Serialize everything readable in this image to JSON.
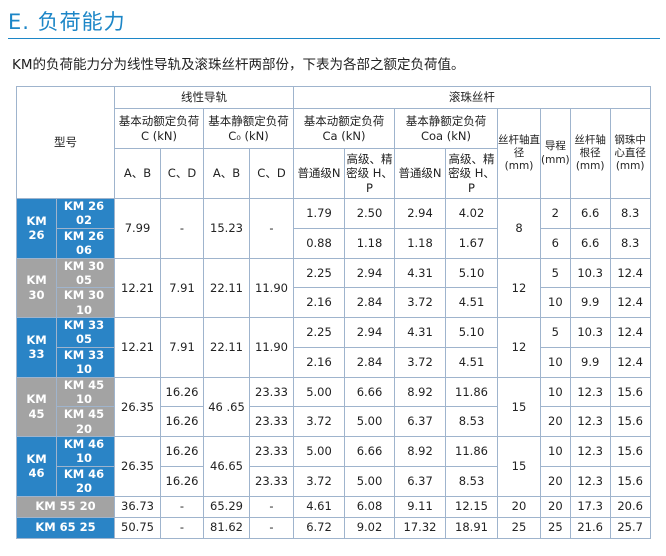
{
  "title": "E. 负荷能力",
  "intro": "KM的负荷能力分为线性导轨及滚珠丝杆两部份，下表为各部之额定负荷值。",
  "headers": {
    "model": "型号",
    "linear_group": "线性导轨",
    "screw_group": "滚珠丝杆",
    "c_dyn_line1": "基本动额定负荷",
    "c_dyn_line2": "C (kN)",
    "c_sta_line1": "基本静额定负荷",
    "c_sta_line2": "C₀ (kN)",
    "ca_line1": "基本动额定负荷",
    "ca_line2": "Ca (kN)",
    "coa_line1": "基本静额定负荷",
    "coa_line2": "Coa (kN)",
    "diameter": "丝杆轴直径 (mm)",
    "lead": "导程 (mm)",
    "root": "丝杆轴根径 (mm)",
    "steel_ball": "钢珠中心直径 (mm)",
    "ab1": "A、B",
    "cd1": "C、D",
    "ab2": "A、B",
    "cd2": "C、D",
    "normal1": "普通级N",
    "high1": "高级、精密级 H、P",
    "normal2": "普通级N",
    "high2": "高级、精密级 H、P"
  },
  "groups": [
    {
      "label": "KM 26",
      "color": "#2a84c6",
      "c_ab": "7.99",
      "c_cd": "-",
      "c0_ab": "15.23",
      "c0_cd": "-",
      "diameter": "8",
      "rows": [
        {
          "model": "KM 26 02",
          "ca_n": "1.79",
          "ca_hp": "2.50",
          "coa_n": "2.94",
          "coa_hp": "4.02",
          "lead": "2",
          "root": "6.6",
          "ball": "8.3"
        },
        {
          "model": "KM 26 06",
          "ca_n": "0.88",
          "ca_hp": "1.18",
          "coa_n": "1.18",
          "coa_hp": "1.67",
          "lead": "6",
          "root": "6.6",
          "ball": "8.3"
        }
      ]
    },
    {
      "label": "KM 30",
      "color": "#a3a3a3",
      "c_ab": "12.21",
      "c_cd": "7.91",
      "c0_ab": "22.11",
      "c0_cd": "11.90",
      "diameter": "12",
      "rows": [
        {
          "model": "KM 30 05",
          "ca_n": "2.25",
          "ca_hp": "2.94",
          "coa_n": "4.31",
          "coa_hp": "5.10",
          "lead": "5",
          "root": "10.3",
          "ball": "12.4"
        },
        {
          "model": "KM 30 10",
          "ca_n": "2.16",
          "ca_hp": "2.84",
          "coa_n": "3.72",
          "coa_hp": "4.51",
          "lead": "10",
          "root": "9.9",
          "ball": "12.4"
        }
      ]
    },
    {
      "label": "KM 33",
      "color": "#2a84c6",
      "c_ab": "12.21",
      "c_cd": "7.91",
      "c0_ab": "22.11",
      "c0_cd": "11.90",
      "diameter": "12",
      "rows": [
        {
          "model": "KM 33 05",
          "ca_n": "2.25",
          "ca_hp": "2.94",
          "coa_n": "4.31",
          "coa_hp": "5.10",
          "lead": "5",
          "root": "10.3",
          "ball": "12.4"
        },
        {
          "model": "KM 33 10",
          "ca_n": "2.16",
          "ca_hp": "2.84",
          "coa_n": "3.72",
          "coa_hp": "4.51",
          "lead": "10",
          "root": "9.9",
          "ball": "12.4"
        }
      ]
    },
    {
      "label": "KM 45",
      "color": "#a3a3a3",
      "c_ab": "26.35",
      "c0_ab": "46 .65",
      "diameter": "15",
      "rows": [
        {
          "model": "KM 45 10",
          "c_cd": "16.26",
          "c0_cd": "23.33",
          "ca_n": "5.00",
          "ca_hp": "6.66",
          "coa_n": "8.92",
          "coa_hp": "11.86",
          "lead": "10",
          "root": "12.3",
          "ball": "15.6"
        },
        {
          "model": "KM 45 20",
          "c_cd": "16.26",
          "c0_cd": "23.33",
          "ca_n": "3.72",
          "ca_hp": "5.00",
          "coa_n": "6.37",
          "coa_hp": "8.53",
          "lead": "20",
          "root": "12.3",
          "ball": "15.6"
        }
      ]
    },
    {
      "label": "KM 46",
      "color": "#2a84c6",
      "c_ab": "26.35",
      "c0_ab": "46.65",
      "diameter": "15",
      "rows": [
        {
          "model": "KM 46 10",
          "c_cd": "16.26",
          "c0_cd": "23.33",
          "ca_n": "5.00",
          "ca_hp": "6.66",
          "coa_n": "8.92",
          "coa_hp": "11.86",
          "lead": "10",
          "root": "12.3",
          "ball": "15.6"
        },
        {
          "model": "KM 46 20",
          "c_cd": "16.26",
          "c0_cd": "23.33",
          "ca_n": "3.72",
          "ca_hp": "5.00",
          "coa_n": "6.37",
          "coa_hp": "8.53",
          "lead": "20",
          "root": "12.3",
          "ball": "15.6"
        }
      ]
    }
  ],
  "single_rows": [
    {
      "model": "KM 55 20",
      "color": "#a3a3a3",
      "c_ab": "36.73",
      "c_cd": "-",
      "c0_ab": "65.29",
      "c0_cd": "-",
      "ca_n": "4.61",
      "ca_hp": "6.08",
      "coa_n": "9.11",
      "coa_hp": "12.15",
      "diameter": "20",
      "lead": "20",
      "root": "17.3",
      "ball": "20.6"
    },
    {
      "model": "KM 65 25",
      "color": "#2a84c6",
      "c_ab": "50.75",
      "c_cd": "-",
      "c0_ab": "81.62",
      "c0_cd": "-",
      "ca_n": "6.72",
      "ca_hp": "9.02",
      "coa_n": "17.32",
      "coa_hp": "18.91",
      "diameter": "25",
      "lead": "25",
      "root": "21.6",
      "ball": "25.7"
    }
  ]
}
